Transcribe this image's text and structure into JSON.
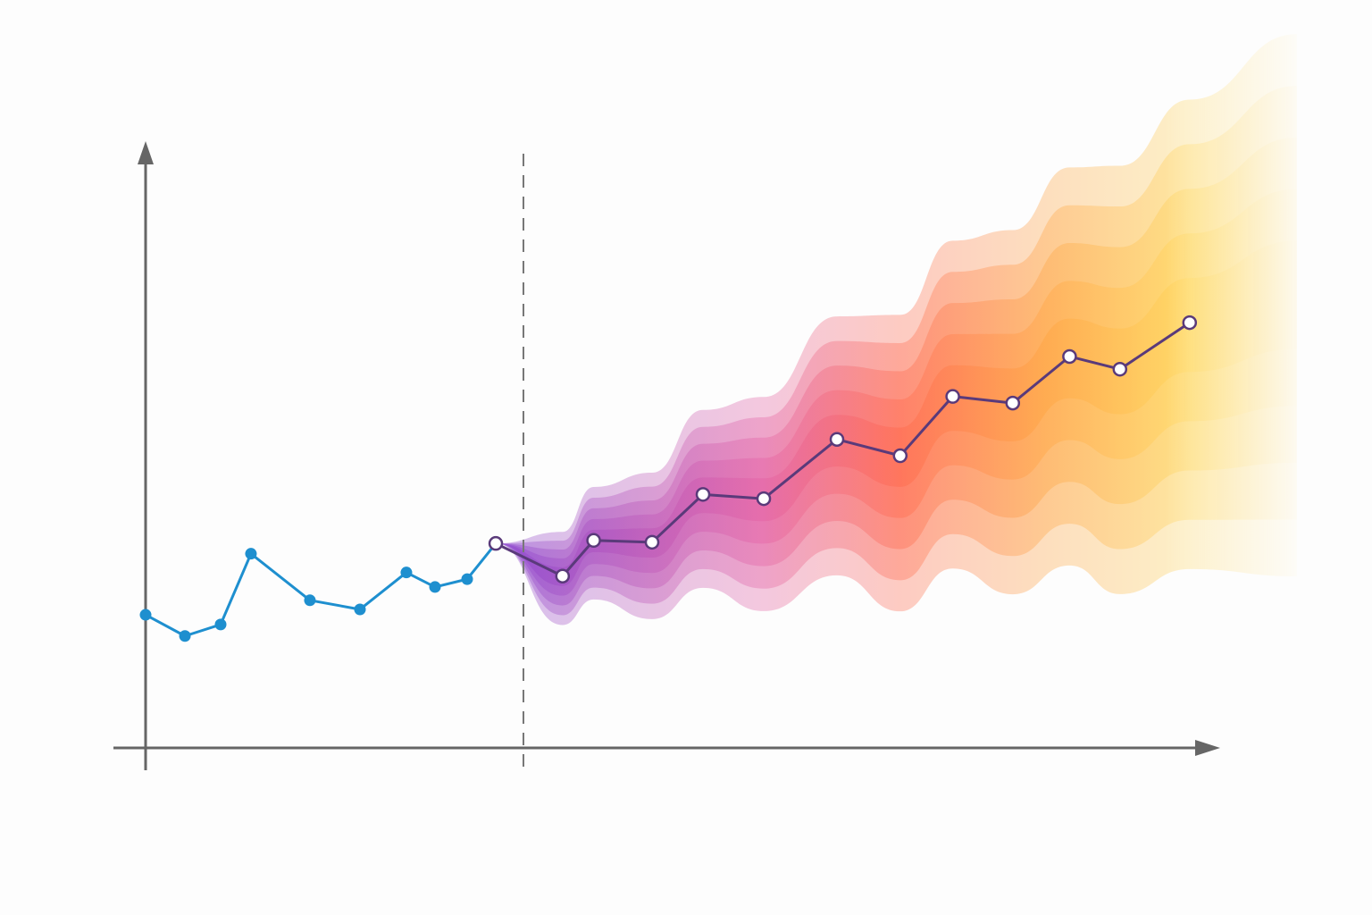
{
  "chart_data": {
    "type": "line",
    "title": "",
    "xlabel": "",
    "ylabel": "",
    "xlim": [
      0,
      100
    ],
    "ylim": [
      0,
      100
    ],
    "grid": false,
    "legend": "none",
    "axis_ticks": false,
    "forecast_start_x": 35.25,
    "series": [
      {
        "role": "history",
        "color": "#1e8fcf",
        "x": [
          0,
          3.67,
          7,
          9.83,
          15.33,
          20,
          24.33,
          27,
          30,
          32.67
        ],
        "y": [
          22.0,
          18.5,
          20.4,
          32.1,
          24.4,
          22.9,
          29.0,
          26.6,
          27.9,
          33.8
        ]
      },
      {
        "role": "forecast-median",
        "color": "#5a3a7a",
        "x": [
          32.67,
          38.9,
          41.8,
          47.25,
          52,
          57.67,
          64.5,
          70.4,
          75.3,
          80.9,
          86.2,
          90.9,
          97.4
        ],
        "y": [
          33.8,
          28.4,
          34.3,
          34.0,
          41.9,
          41.2,
          51.0,
          48.3,
          58.1,
          57.0,
          64.7,
          62.6,
          70.3
        ]
      }
    ],
    "fan": {
      "type": "uncertainty-bands",
      "levels": [
        1.0,
        0.8,
        0.6,
        0.4,
        0.2
      ],
      "outer_spread": [
        0,
        7.7,
        9.3,
        12.1,
        14.7,
        17.7,
        21.4,
        24.5,
        27.1,
        30.1,
        32.9,
        35.4,
        38.8
      ],
      "colors": [
        "#7b2fc9",
        "#e0509a",
        "#ff5a3c",
        "#ff9a2e",
        "#ffd24a"
      ]
    }
  }
}
